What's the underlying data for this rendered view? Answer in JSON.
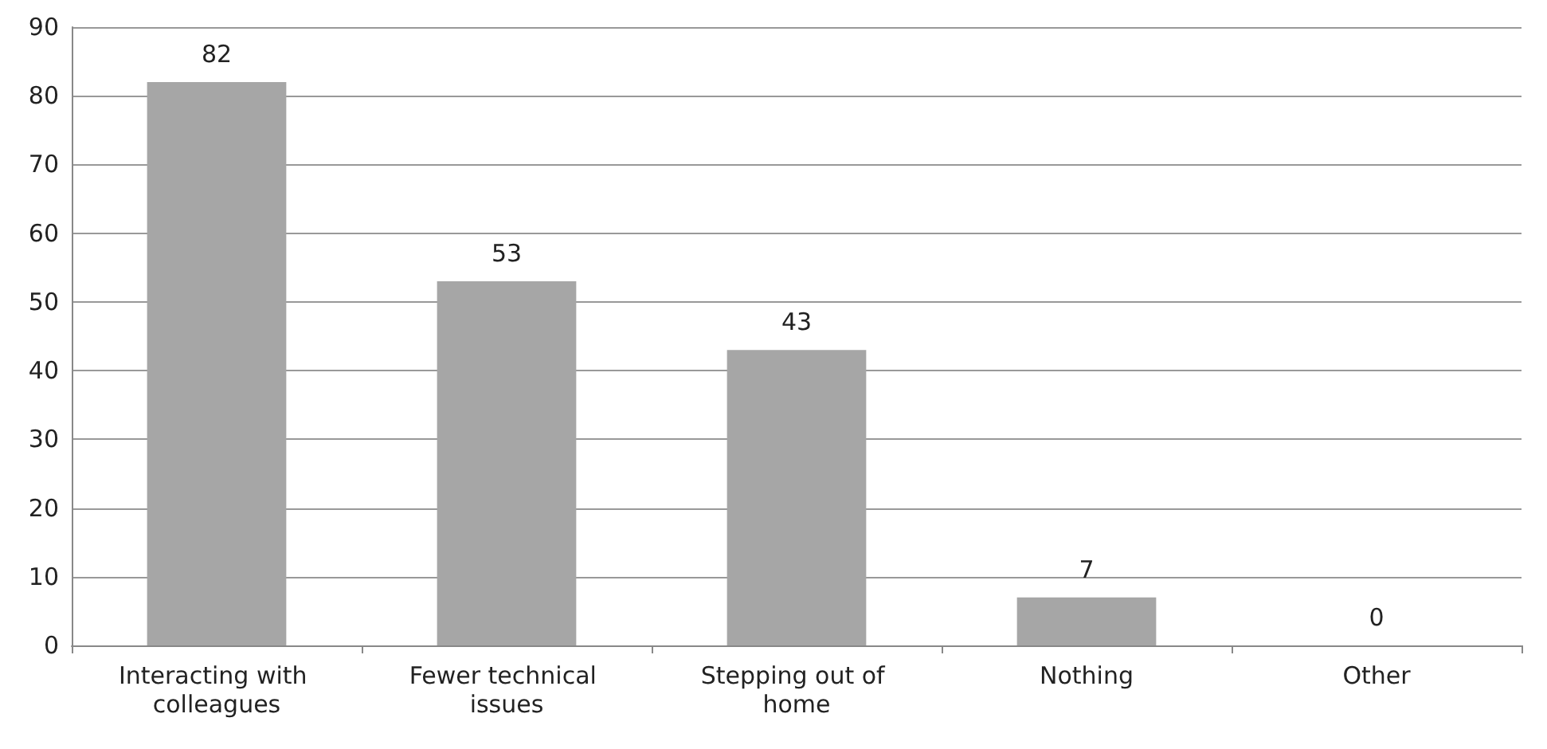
{
  "chart_data": {
    "type": "bar",
    "categories": [
      "Interacting with colleagues",
      "Fewer technical issues",
      "Stepping out of home",
      "Nothing",
      "Other"
    ],
    "values": [
      82,
      53,
      43,
      7,
      0
    ],
    "color": "#a6a6a6",
    "ylim": [
      0,
      90
    ],
    "yticks": [
      0,
      10,
      20,
      30,
      40,
      50,
      60,
      70,
      80,
      90
    ],
    "grid": "y",
    "data_labels": true
  }
}
